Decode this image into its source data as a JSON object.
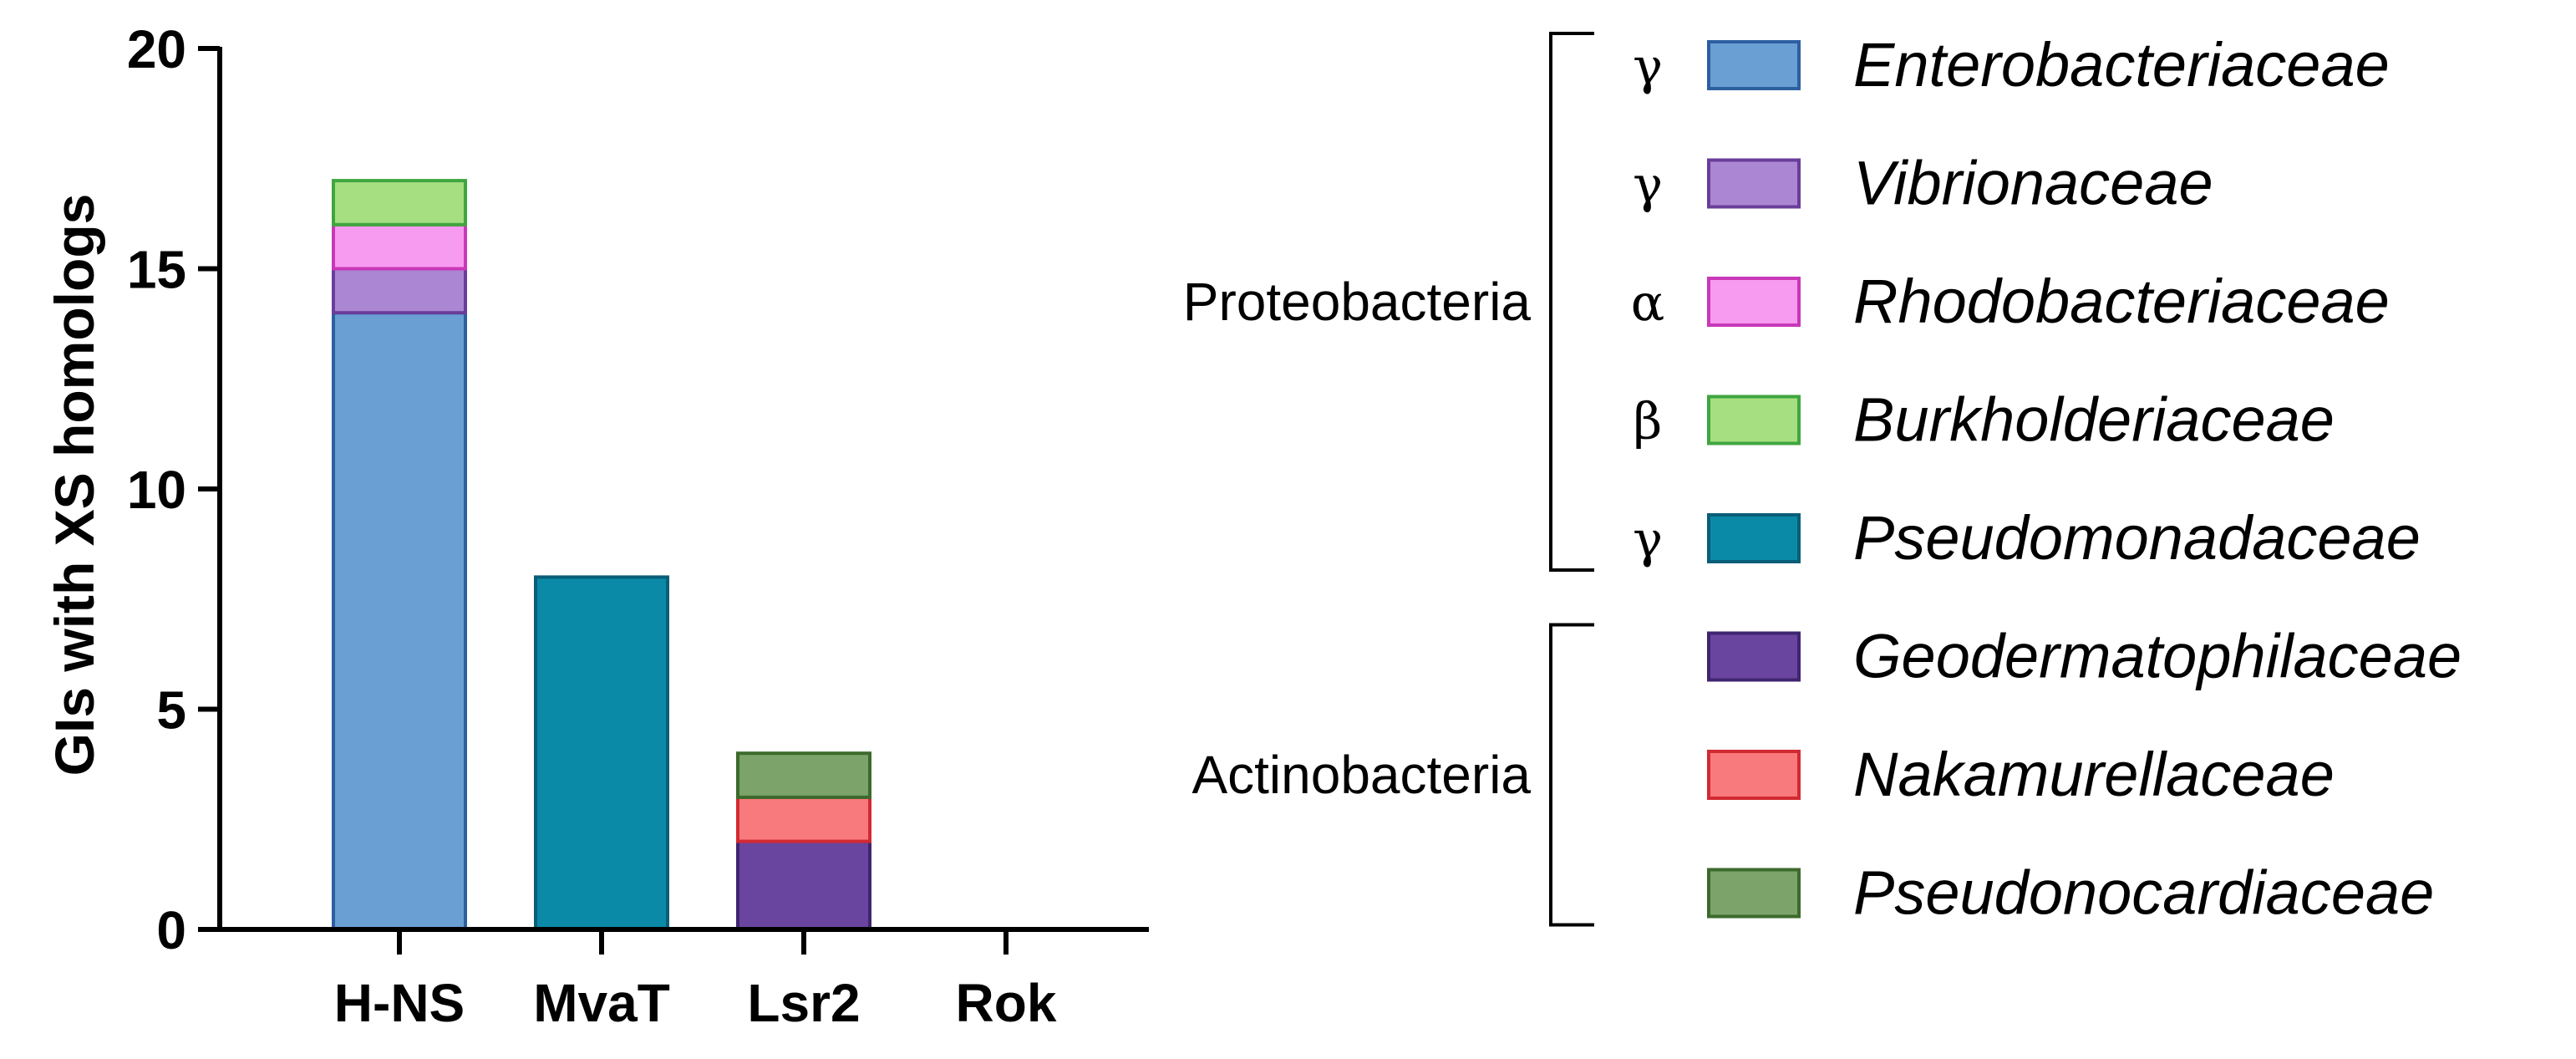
{
  "chart_data": {
    "type": "bar",
    "stacked": true,
    "title": "",
    "xlabel": "",
    "ylabel": "GIs with XS homologs",
    "ylim": [
      0,
      20
    ],
    "yticks": [
      0,
      5,
      10,
      15,
      20
    ],
    "categories": [
      "H-NS",
      "MvaT",
      "Lsr2",
      "Rok"
    ],
    "series": [
      {
        "name": "Enterobacteriaceae",
        "group": "Proteobacteria",
        "class": "γ",
        "fill": "#6A9FD4",
        "stroke": "#2C5FA0",
        "values": [
          14,
          0,
          0,
          0
        ]
      },
      {
        "name": "Vibrionaceae",
        "group": "Proteobacteria",
        "class": "γ",
        "fill": "#AB86D2",
        "stroke": "#6A3D9A",
        "values": [
          1,
          0,
          0,
          0
        ]
      },
      {
        "name": "Rhodobacteriaceae",
        "group": "Proteobacteria",
        "class": "α",
        "fill": "#F79BF0",
        "stroke": "#C838B8",
        "values": [
          1,
          0,
          0,
          0
        ]
      },
      {
        "name": "Burkholderiaceae",
        "group": "Proteobacteria",
        "class": "β",
        "fill": "#A6DE82",
        "stroke": "#3FA63F",
        "values": [
          1,
          0,
          0,
          0
        ]
      },
      {
        "name": "Pseudomonadaceae",
        "group": "Proteobacteria",
        "class": "γ",
        "fill": "#0B8AA7",
        "stroke": "#0A5E78",
        "values": [
          0,
          8,
          0,
          0
        ]
      },
      {
        "name": "Geodermatophilaceae",
        "group": "Actinobacteria",
        "class": "",
        "fill": "#6A45A0",
        "stroke": "#3F2570",
        "values": [
          0,
          0,
          2,
          0
        ]
      },
      {
        "name": "Nakamurellaceae",
        "group": "Actinobacteria",
        "class": "",
        "fill": "#F97A7C",
        "stroke": "#D12A32",
        "values": [
          0,
          0,
          1,
          0
        ]
      },
      {
        "name": "Pseudonocardiaceae",
        "group": "Actinobacteria",
        "class": "",
        "fill": "#7BA36A",
        "stroke": "#3C6A2C",
        "values": [
          0,
          0,
          1,
          0
        ]
      }
    ],
    "groups": [
      "Proteobacteria",
      "Actinobacteria"
    ],
    "legend_position": "right"
  }
}
